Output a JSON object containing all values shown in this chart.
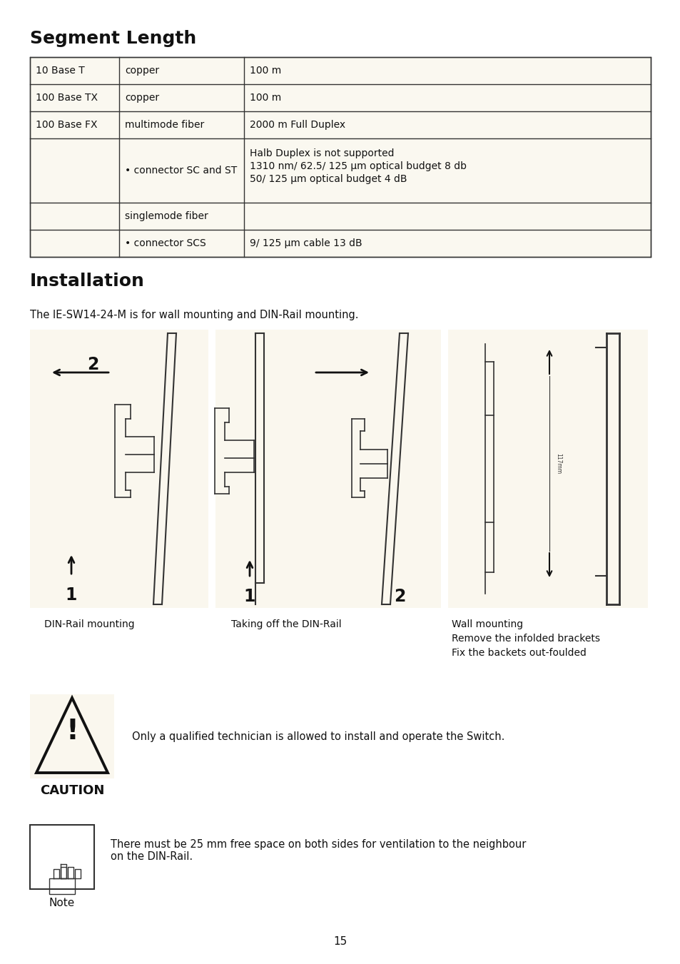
{
  "title_segment": "Segment Length",
  "title_installation": "Installation",
  "bg_color": "#ffffff",
  "table_bg": "#faf8f0",
  "table_border": "#333333",
  "table_data": [
    [
      "10 Base T",
      "copper",
      "100 m"
    ],
    [
      "100 Base TX",
      "copper",
      "100 m"
    ],
    [
      "100 Base FX",
      "multimode fiber",
      "2000 m Full Duplex"
    ],
    [
      "",
      "• connector SC and ST",
      "Halb Duplex is not supported\n1310 nm/ 62.5/ 125 μm optical budget 8 db\n50/ 125 μm optical budget 4 dB"
    ],
    [
      "",
      "singlemode fiber",
      ""
    ],
    [
      "",
      "• connector SCS",
      "9/ 125 μm cable 13 dB"
    ]
  ],
  "install_desc": "The IE-SW14-24-M is for wall mounting and DIN-Rail mounting.",
  "caption_din": "DIN-Rail mounting",
  "caption_take": "Taking off the DIN-Rail",
  "caption_wall_line1": "Wall mounting",
  "caption_wall_line2": "Remove the infolded brackets",
  "caption_wall_line3": "Fix the backets out-foulded",
  "caution_text": "Only a qualified technician is allowed to install and operate the Switch.",
  "note_text": "There must be 25 mm free space on both sides for ventilation to the neighbour\non the DIN-Rail.",
  "page_number": "15",
  "font_family": "DejaVu Sans",
  "panel_bg": "#faf7ee"
}
